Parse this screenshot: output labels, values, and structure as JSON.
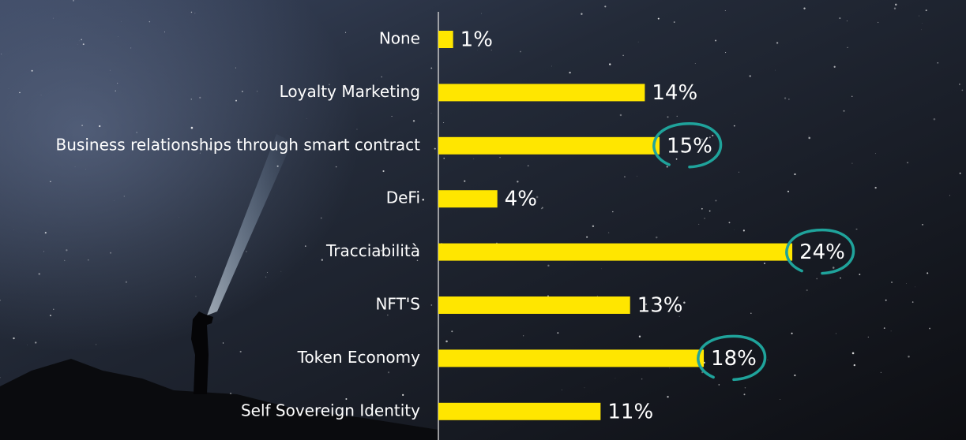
{
  "chart_data": {
    "type": "bar",
    "orientation": "horizontal",
    "categories": [
      "None",
      "Loyalty Marketing",
      "Business relationships through smart contract",
      "DeFi",
      "Tracciabilità",
      "NFT'S",
      "Token Economy",
      "Self Sovereign Identity"
    ],
    "values": [
      1,
      14,
      15,
      4,
      24,
      13,
      18,
      11
    ],
    "value_labels": [
      "1%",
      "14%",
      "15%",
      "4%",
      "24%",
      "13%",
      "18%",
      "11%"
    ],
    "color": "#ffe600",
    "highlighted": [
      false,
      false,
      true,
      false,
      true,
      false,
      true,
      false
    ],
    "highlight_color": "#1fa39b"
  }
}
